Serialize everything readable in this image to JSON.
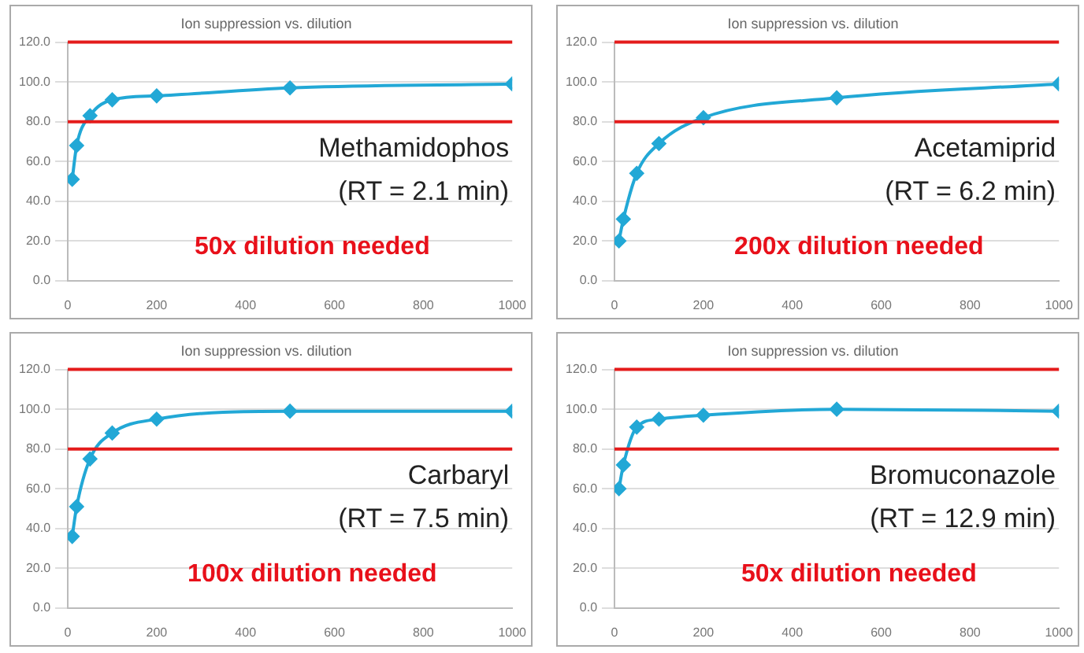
{
  "chart_data": [
    {
      "type": "line",
      "title": "Ion suppression vs. dilution",
      "x": [
        10,
        20,
        50,
        100,
        200,
        500,
        1000
      ],
      "series": [
        {
          "color": "#22a8d6",
          "values": [
            51,
            68,
            83,
            91,
            93,
            97,
            99
          ]
        }
      ],
      "xlim": [
        0,
        1000
      ],
      "xticks": [
        0,
        200,
        400,
        600,
        800,
        1000
      ],
      "ylim": [
        0,
        120
      ],
      "yticks": [
        {
          "value": 0,
          "label": "0.0"
        },
        {
          "value": 20,
          "label": "20.0"
        },
        {
          "value": 40,
          "label": "40.0"
        },
        {
          "value": 60,
          "label": "60.0"
        },
        {
          "value": 80,
          "label": "80.0"
        },
        {
          "value": 100,
          "label": "100.0"
        },
        {
          "value": 120,
          "label": "120.0"
        }
      ],
      "ref_lines": [
        {
          "axis": "y",
          "value": 80,
          "color": "#e41b1b"
        },
        {
          "axis": "y",
          "value": 120,
          "color": "#e41b1b"
        }
      ],
      "annotations": [
        "Methamidophos",
        "(RT = 2.1 min)",
        "50x dilution needed"
      ],
      "grid": "y",
      "legend": false,
      "marker": "diamond",
      "line_style": "solid"
    },
    {
      "type": "line",
      "title": "Ion suppression vs. dilution",
      "x": [
        10,
        20,
        50,
        100,
        200,
        500,
        1000
      ],
      "series": [
        {
          "color": "#22a8d6",
          "values": [
            20,
            31,
            54,
            69,
            82,
            92,
            99
          ]
        }
      ],
      "xlim": [
        0,
        1000
      ],
      "xticks": [
        0,
        200,
        400,
        600,
        800,
        1000
      ],
      "ylim": [
        0,
        120
      ],
      "yticks": [
        {
          "value": 0,
          "label": "0.0"
        },
        {
          "value": 20,
          "label": "20.0"
        },
        {
          "value": 40,
          "label": "40.0"
        },
        {
          "value": 60,
          "label": "60.0"
        },
        {
          "value": 80,
          "label": "80.0"
        },
        {
          "value": 100,
          "label": "100.0"
        },
        {
          "value": 120,
          "label": "120.0"
        }
      ],
      "ref_lines": [
        {
          "axis": "y",
          "value": 80,
          "color": "#e41b1b"
        },
        {
          "axis": "y",
          "value": 120,
          "color": "#e41b1b"
        }
      ],
      "annotations": [
        "Acetamiprid",
        "(RT = 6.2 min)",
        "200x dilution needed"
      ],
      "grid": "y",
      "legend": false,
      "marker": "diamond",
      "line_style": "solid"
    },
    {
      "type": "line",
      "title": "Ion suppression vs. dilution",
      "x": [
        10,
        20,
        50,
        100,
        200,
        500,
        1000
      ],
      "series": [
        {
          "color": "#22a8d6",
          "values": [
            36,
            51,
            75,
            88,
            95,
            99,
            99
          ]
        }
      ],
      "xlim": [
        0,
        1000
      ],
      "xticks": [
        0,
        200,
        400,
        600,
        800,
        1000
      ],
      "ylim": [
        0,
        120
      ],
      "yticks": [
        {
          "value": 0,
          "label": "0.0"
        },
        {
          "value": 20,
          "label": "20.0"
        },
        {
          "value": 40,
          "label": "40.0"
        },
        {
          "value": 60,
          "label": "60.0"
        },
        {
          "value": 80,
          "label": "80.0"
        },
        {
          "value": 100,
          "label": "100.0"
        },
        {
          "value": 120,
          "label": "120.0"
        }
      ],
      "ref_lines": [
        {
          "axis": "y",
          "value": 80,
          "color": "#e41b1b"
        },
        {
          "axis": "y",
          "value": 120,
          "color": "#e41b1b"
        }
      ],
      "annotations": [
        "Carbaryl",
        "(RT = 7.5 min)",
        "100x dilution needed"
      ],
      "grid": "y",
      "legend": false,
      "marker": "diamond",
      "line_style": "solid"
    },
    {
      "type": "line",
      "title": "Ion suppression vs. dilution",
      "x": [
        10,
        20,
        50,
        100,
        200,
        500,
        1000
      ],
      "series": [
        {
          "color": "#22a8d6",
          "values": [
            60,
            72,
            91,
            95,
            97,
            100,
            99
          ]
        }
      ],
      "xlim": [
        0,
        1000
      ],
      "xticks": [
        0,
        200,
        400,
        600,
        800,
        1000
      ],
      "ylim": [
        0,
        120
      ],
      "yticks": [
        {
          "value": 0,
          "label": "0.0"
        },
        {
          "value": 20,
          "label": "20.0"
        },
        {
          "value": 40,
          "label": "40.0"
        },
        {
          "value": 60,
          "label": "60.0"
        },
        {
          "value": 80,
          "label": "80.0"
        },
        {
          "value": 100,
          "label": "100.0"
        },
        {
          "value": 120,
          "label": "120.0"
        }
      ],
      "ref_lines": [
        {
          "axis": "y",
          "value": 80,
          "color": "#e41b1b"
        },
        {
          "axis": "y",
          "value": 120,
          "color": "#e41b1b"
        }
      ],
      "annotations": [
        "Bromuconazole",
        "(RT = 12.9 min)",
        "50x dilution needed"
      ],
      "grid": "y",
      "legend": false,
      "marker": "diamond",
      "line_style": "solid"
    }
  ]
}
